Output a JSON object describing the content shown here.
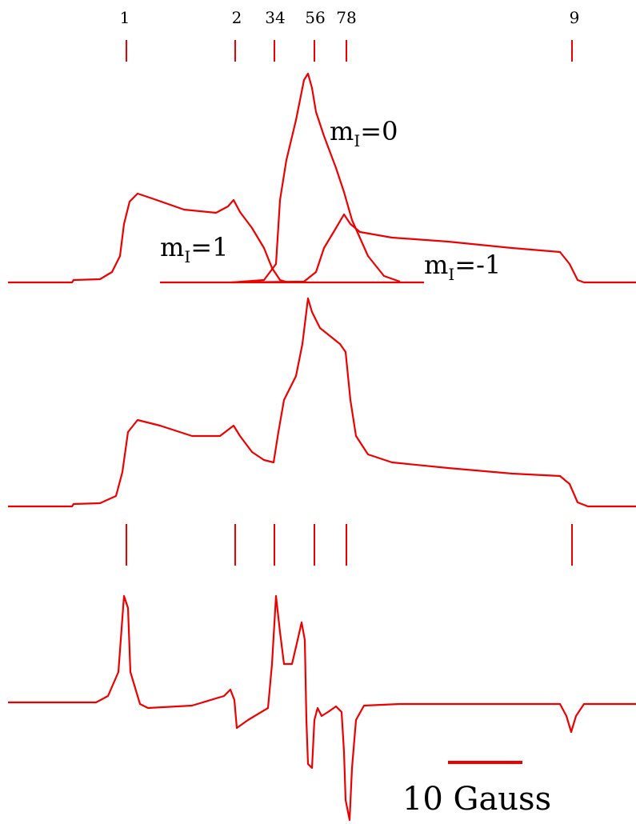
{
  "peak_labels": [
    "1",
    "2",
    "34",
    "56",
    "78",
    "9"
  ],
  "components": [
    {
      "base": "m",
      "sub": "I",
      "rest": "=0"
    },
    {
      "base": "m",
      "sub": "I",
      "rest": "=1"
    },
    {
      "base": "m",
      "sub": "I",
      "rest": "=-1"
    }
  ],
  "scale_bar": "10 Gauss"
}
